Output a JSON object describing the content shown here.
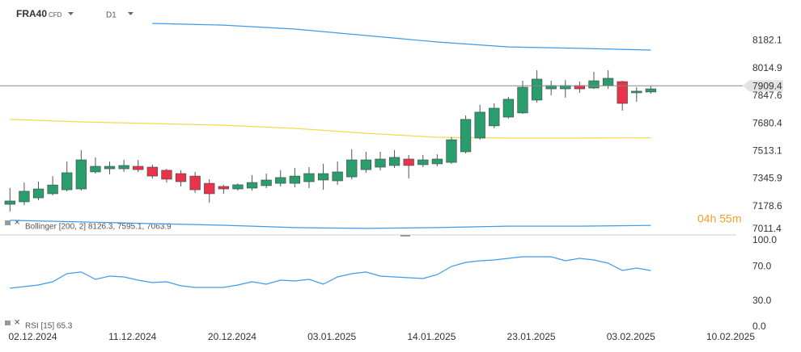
{
  "header": {
    "symbol": "FRA40",
    "instrument_type": "CFD",
    "timeframe": "D1"
  },
  "countdown": "04h 55m",
  "bollinger_label": "Bollinger  [200, 2] 8126.3,  7595.1,  7063.9",
  "rsi_label": "RSI [15] 65.3",
  "chart_data": [
    {
      "type": "candlestick",
      "x": [
        0,
        1,
        2,
        3,
        4,
        5,
        6,
        7,
        8,
        9,
        10,
        11,
        12,
        13,
        14,
        15,
        16,
        17,
        18,
        19,
        20,
        21,
        22,
        23,
        24,
        25,
        26,
        27,
        28,
        29,
        30,
        31,
        32,
        33,
        34,
        35,
        36,
        37,
        38,
        39,
        40,
        41,
        42,
        43,
        44,
        45
      ],
      "open": [
        7192,
        7207,
        7231,
        7256,
        7280,
        7285,
        7388,
        7407,
        7407,
        7422,
        7417,
        7398,
        7378,
        7363,
        7319,
        7300,
        7285,
        7290,
        7305,
        7319,
        7319,
        7329,
        7339,
        7334,
        7358,
        7402,
        7417,
        7427,
        7466,
        7432,
        7437,
        7446,
        7510,
        7593,
        7667,
        7720,
        7745,
        7823,
        7891,
        7891,
        7911,
        7896,
        7911,
        7935,
        7867,
        7872
      ],
      "high": [
        7290,
        7324,
        7329,
        7363,
        7451,
        7520,
        7476,
        7451,
        7461,
        7461,
        7432,
        7407,
        7398,
        7388,
        7344,
        7310,
        7319,
        7368,
        7378,
        7398,
        7412,
        7417,
        7437,
        7451,
        7525,
        7510,
        7510,
        7520,
        7491,
        7491,
        7495,
        7598,
        7730,
        7794,
        7803,
        7842,
        7940,
        8004,
        7940,
        7945,
        7935,
        7994,
        8004,
        7940,
        7901,
        7906
      ],
      "low": [
        7148,
        7187,
        7217,
        7246,
        7270,
        7275,
        7378,
        7373,
        7388,
        7388,
        7349,
        7324,
        7300,
        7261,
        7202,
        7256,
        7275,
        7275,
        7290,
        7300,
        7295,
        7290,
        7280,
        7310,
        7344,
        7383,
        7397,
        7412,
        7349,
        7417,
        7422,
        7437,
        7500,
        7583,
        7652,
        7711,
        7740,
        7808,
        7852,
        7838,
        7867,
        7891,
        7891,
        7759,
        7813,
        7862
      ],
      "close": [
        7212,
        7271,
        7285,
        7309,
        7383,
        7461,
        7422,
        7422,
        7427,
        7402,
        7363,
        7344,
        7329,
        7280,
        7256,
        7285,
        7310,
        7324,
        7339,
        7354,
        7363,
        7378,
        7378,
        7388,
        7461,
        7461,
        7466,
        7476,
        7427,
        7461,
        7466,
        7583,
        7706,
        7750,
        7774,
        7828,
        7901,
        7950,
        7911,
        7911,
        7891,
        7940,
        7955,
        7803,
        7877,
        7891
      ],
      "up_color": "#2a9d6c",
      "down_color": "#e8334a",
      "overlays": [
        {
          "color": "#3d9be9",
          "x": [
            10,
            15,
            20,
            25,
            30,
            35,
            40,
            45
          ],
          "values": [
            8287,
            8277,
            8253,
            8214,
            8175,
            8145,
            8136,
            8126
          ]
        },
        {
          "color": "#f3d94c",
          "x": [
            0,
            5,
            10,
            15,
            20,
            25,
            30,
            35,
            40,
            45
          ],
          "values": [
            7706,
            7691,
            7681,
            7671,
            7652,
            7622,
            7598,
            7593,
            7593,
            7595
          ]
        },
        {
          "color": "#3d9be9",
          "x": [
            0,
            5,
            10,
            15,
            20,
            25,
            30,
            35,
            40,
            45
          ],
          "values": [
            7095,
            7085,
            7075,
            7065,
            7051,
            7046,
            7051,
            7060,
            7060,
            7064
          ]
        }
      ],
      "last_price": 7909.4,
      "xlim": [
        -0.7,
        51
      ],
      "ylim": [
        7011.4,
        8429
      ],
      "yticks": [
        8182.1,
        8014.9,
        7847.6,
        7680.4,
        7513.1,
        7345.9,
        7178.6,
        7011.4
      ],
      "xticks": [
        {
          "value": 2,
          "label": "02.12.2024"
        },
        {
          "value": 9,
          "label": "11.12.2024"
        },
        {
          "value": 16,
          "label": "20.12.2024"
        },
        {
          "value": 23,
          "label": "03.01.2025"
        },
        {
          "value": 30,
          "label": "14.01.2025"
        },
        {
          "value": 37,
          "label": "23.01.2025"
        },
        {
          "value": 44,
          "label": "03.02.2025"
        },
        {
          "value": 51,
          "label": "10.02.2025"
        }
      ]
    },
    {
      "type": "line",
      "x": [
        0,
        1,
        2,
        3,
        4,
        5,
        6,
        7,
        8,
        9,
        10,
        11,
        12,
        13,
        14,
        15,
        16,
        17,
        18,
        19,
        20,
        21,
        22,
        23,
        24,
        25,
        26,
        27,
        28,
        29,
        30,
        31,
        32,
        33,
        34,
        35,
        36,
        37,
        38,
        39,
        40,
        41,
        42,
        43,
        44,
        45
      ],
      "values": [
        44.9,
        46.7,
        48.6,
        52.3,
        61.7,
        63.6,
        55.1,
        58.9,
        57.9,
        54.2,
        51.4,
        52.3,
        47.7,
        45.8,
        45.8,
        45.8,
        48.6,
        52.3,
        49.5,
        54.2,
        53.3,
        55.1,
        49.5,
        57.9,
        61.7,
        63.6,
        58.9,
        57.9,
        57,
        56.1,
        60.7,
        70.1,
        74.8,
        76.6,
        77.6,
        79.4,
        81.3,
        81.3,
        81.3,
        76.6,
        79.4,
        77.6,
        73.8,
        65.4,
        68.2,
        65.3
      ],
      "color": "#3d9be9",
      "xlim": [
        -0.7,
        51
      ],
      "ylim": [
        0,
        100
      ],
      "yticks": [
        {
          "value": 100,
          "label": "100.0"
        },
        {
          "value": 70,
          "label": "70.0"
        },
        {
          "value": 30,
          "label": "30.0"
        },
        {
          "value": 0,
          "label": "0.0"
        }
      ]
    }
  ]
}
